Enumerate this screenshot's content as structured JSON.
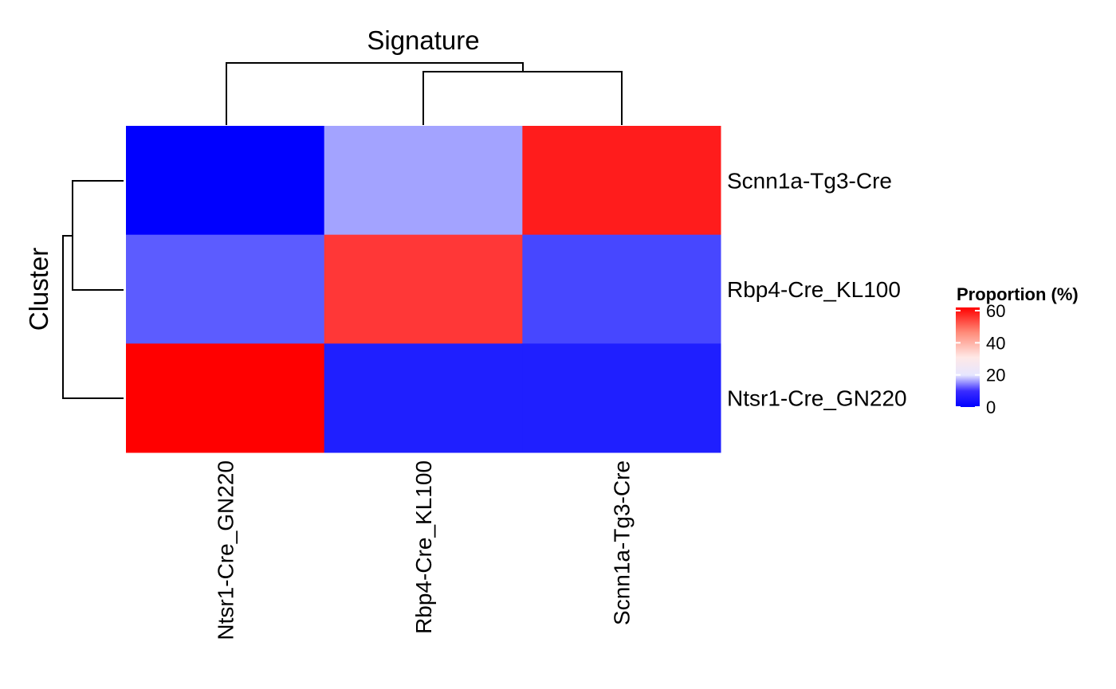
{
  "chart_data": {
    "type": "heatmap",
    "column_title": "Signature",
    "row_title": "Cluster",
    "columns": [
      "Ntsr1-Cre_GN220",
      "Rbp4-Cre_KL100",
      "Scnn1a-Tg3-Cre"
    ],
    "rows": [
      "Scnn1a-Tg3-Cre",
      "Rbp4-Cre_KL100",
      "Ntsr1-Cre_GN220"
    ],
    "values": [
      [
        0,
        16,
        58
      ],
      [
        9,
        54,
        7
      ],
      [
        62,
        3,
        3
      ]
    ],
    "legend": {
      "title": "Proportion (%)",
      "ticks": [
        0,
        20,
        40,
        60
      ],
      "range": [
        0,
        62
      ],
      "colors": [
        "#0000ff",
        "#ffffff",
        "#ff0000"
      ]
    },
    "column_dendrogram": "Ntsr1-Cre_GN220 joins (Rbp4-Cre_KL100, Scnn1a-Tg3-Cre)",
    "row_dendrogram": "Ntsr1-Cre_GN220 joins (Scnn1a-Tg3-Cre, Rbp4-Cre_KL100)"
  }
}
